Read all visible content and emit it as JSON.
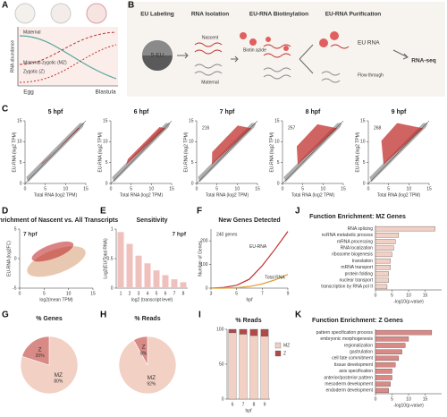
{
  "figure": {
    "letters": [
      "A",
      "B",
      "C",
      "D",
      "E",
      "F",
      "J",
      "G",
      "H",
      "I",
      "K"
    ],
    "A": {
      "legend": [
        "Maternal",
        "Maternal-zygotic (MZ)",
        "Zygotic (Z)"
      ],
      "y_label": "RNA abundance",
      "x_labels": [
        "Egg",
        "Blastula"
      ]
    },
    "B": {
      "steps": [
        "EU Labeling",
        "RNA Isolation",
        "EU-RNA Biotinylation",
        "EU-RNA Purification"
      ],
      "output": "RNA-seq",
      "eu": "5-EU",
      "nascent": "Nascent",
      "maternal": "Maternal",
      "biotin": "Biotin azide",
      "eu_rna": "EU RNA",
      "flow": "Flow through"
    }
  },
  "chart_data": [
    {
      "type": "scatter",
      "title": "5 hpf",
      "x_label": "Total RNA (log2 TPM)",
      "y_label": "EU-RNA (log2 TPM)",
      "xlim": [
        0,
        15
      ],
      "ylim": [
        0,
        15
      ],
      "xticks": [
        0,
        5,
        10,
        15
      ],
      "yticks": [
        0,
        5,
        10,
        15
      ],
      "color": "#9a9a9a",
      "highlight_color": "#c0302e",
      "annotations": []
    },
    {
      "type": "scatter",
      "title": "6 hpf",
      "x_label": "Total RNA (log2 TPM)",
      "y_label": "EU-RNA (log2 TPM)",
      "xlim": [
        0,
        15
      ],
      "ylim": [
        0,
        15
      ],
      "xticks": [
        0,
        5,
        10,
        15
      ],
      "yticks": [
        0,
        5,
        10,
        15
      ],
      "color": "#9a9a9a",
      "highlight_color": "#c0302e",
      "annotations": []
    },
    {
      "type": "scatter",
      "title": "7 hpf",
      "x_label": "Total RNA (log2 TPM)",
      "y_label": "EU-RNA (log2 TPM)",
      "xlim": [
        0,
        15
      ],
      "ylim": [
        0,
        15
      ],
      "xticks": [
        0,
        5,
        10,
        15
      ],
      "yticks": [
        0,
        5,
        10,
        15
      ],
      "color": "#9a9a9a",
      "highlight_color": "#c0302e",
      "annotations": [
        "216"
      ]
    },
    {
      "type": "scatter",
      "title": "8 hpf",
      "x_label": "Total RNA (log2 TPM)",
      "y_label": "EU-RNA (log2 TPM)",
      "xlim": [
        0,
        15
      ],
      "ylim": [
        0,
        15
      ],
      "xticks": [
        0,
        5,
        10,
        15
      ],
      "yticks": [
        0,
        5,
        10,
        15
      ],
      "color": "#9a9a9a",
      "highlight_color": "#c0302e",
      "annotations": [
        "257"
      ]
    },
    {
      "type": "scatter",
      "title": "9 hpf",
      "x_label": "Total RNA (log2 TPM)",
      "y_label": "EU-RNA (log2 TPM)",
      "xlim": [
        0,
        15
      ],
      "ylim": [
        0,
        15
      ],
      "xticks": [
        0,
        5,
        10,
        15
      ],
      "yticks": [
        0,
        5,
        10,
        15
      ],
      "color": "#9a9a9a",
      "highlight_color": "#c0302e",
      "annotations": [
        "268"
      ]
    },
    {
      "type": "scatter",
      "title": "Enrichment of Nascent vs. All Transcripts",
      "x_label": "log2(mean TPM)",
      "y_label": "EU-RNA (log2FC)",
      "xlim": [
        0,
        15
      ],
      "ylim": [
        -5,
        5
      ],
      "xticks": [
        0,
        5,
        10,
        15
      ],
      "yticks": [
        -5,
        0,
        5
      ],
      "color": "#e0b090",
      "highlight_color": "#c0302e",
      "annotations": [
        "7 hpf"
      ]
    },
    {
      "type": "bar",
      "title": "Sensitivity",
      "x_label": "log2 (transcript level)",
      "y_label": "Log2(EU/Total RNA)",
      "categories": [
        "1",
        "2",
        "3",
        "4",
        "5",
        "6",
        "7",
        "8"
      ],
      "values": [
        0.95,
        0.75,
        0.55,
        0.42,
        0.3,
        0.22,
        0.15,
        0.1
      ],
      "color": "#f0c0bc",
      "ylim": [
        0,
        1
      ],
      "yticks": [
        0,
        0.5,
        1
      ],
      "annotations": [
        "7 hpf"
      ]
    },
    {
      "type": "line",
      "title": "New Genes Detected",
      "x_label": "hpf",
      "y_label": "Number of Genes",
      "x": [
        3,
        4,
        5,
        6,
        7,
        8,
        9
      ],
      "xlim": [
        3,
        9
      ],
      "xticks": [
        3,
        5,
        7,
        9
      ],
      "ylim": [
        0,
        250
      ],
      "yticks": [
        0,
        100,
        200
      ],
      "series": [
        {
          "name": "EU-RNA",
          "color": "#c0302e",
          "values": [
            0,
            3,
            12,
            38,
            95,
            165,
            240
          ]
        },
        {
          "name": "Total RNA",
          "color": "#e0a030",
          "values": [
            0,
            0,
            2,
            7,
            18,
            35,
            58
          ]
        }
      ],
      "annotations": [
        "240 genes"
      ]
    },
    {
      "type": "barh",
      "title": "Function Enrichment: MZ Genes",
      "x_label": "-log10(p-value)",
      "categories": [
        "RNA splicing",
        "ncRNA metabolic process",
        "mRNA processing",
        "RNA localization",
        "ribosome biogenesis",
        "translation",
        "mRNA transport",
        "protein folding",
        "nuclear transport",
        "transcription by RNA pol II"
      ],
      "values": [
        18,
        7,
        6,
        5.5,
        5,
        4.5,
        4.5,
        4,
        4,
        3.5
      ],
      "color": "#f2d0c4",
      "xlim": [
        0,
        20
      ],
      "xticks": [
        0,
        5,
        10,
        15
      ]
    },
    {
      "type": "pie",
      "title": "% Genes",
      "categories": [
        "MZ",
        "Z"
      ],
      "values": [
        80,
        20
      ],
      "value_labels": [
        "80%",
        "20%"
      ],
      "colors": [
        "#f2d0c4",
        "#d88a86"
      ]
    },
    {
      "type": "pie",
      "title": "% Reads",
      "categories": [
        "MZ",
        "Z"
      ],
      "values": [
        92,
        8
      ],
      "value_labels": [
        "92%",
        "8%"
      ],
      "colors": [
        "#f2d0c4",
        "#d88a86"
      ]
    },
    {
      "type": "stacked_bar",
      "title": "% Reads",
      "x_label": "hpf",
      "categories": [
        "6",
        "7",
        "8",
        "9"
      ],
      "ylim": [
        0,
        100
      ],
      "yticks": [
        0,
        50,
        100
      ],
      "series": [
        {
          "name": "MZ",
          "color": "#f2d0c4",
          "values": [
            95,
            93,
            91,
            90
          ]
        },
        {
          "name": "Z",
          "color": "#b04a48",
          "values": [
            5,
            7,
            9,
            10
          ]
        }
      ]
    },
    {
      "type": "barh",
      "title": "Function Enrichment: Z Genes",
      "x_label": "-log10(p-value)",
      "categories": [
        "pattern specification process",
        "embryonic morphogenesis",
        "regionalization",
        "gastrulation",
        "cell fate commitment",
        "tissue development",
        "axis specification",
        "anterior/posterior pattern",
        "mesoderm development",
        "endoderm development"
      ],
      "values": [
        17,
        10,
        9,
        8,
        7,
        6,
        5,
        5,
        4.5,
        4
      ],
      "color": "#d88a86",
      "xlim": [
        0,
        20
      ],
      "xticks": [
        0,
        5,
        10,
        15
      ]
    }
  ]
}
